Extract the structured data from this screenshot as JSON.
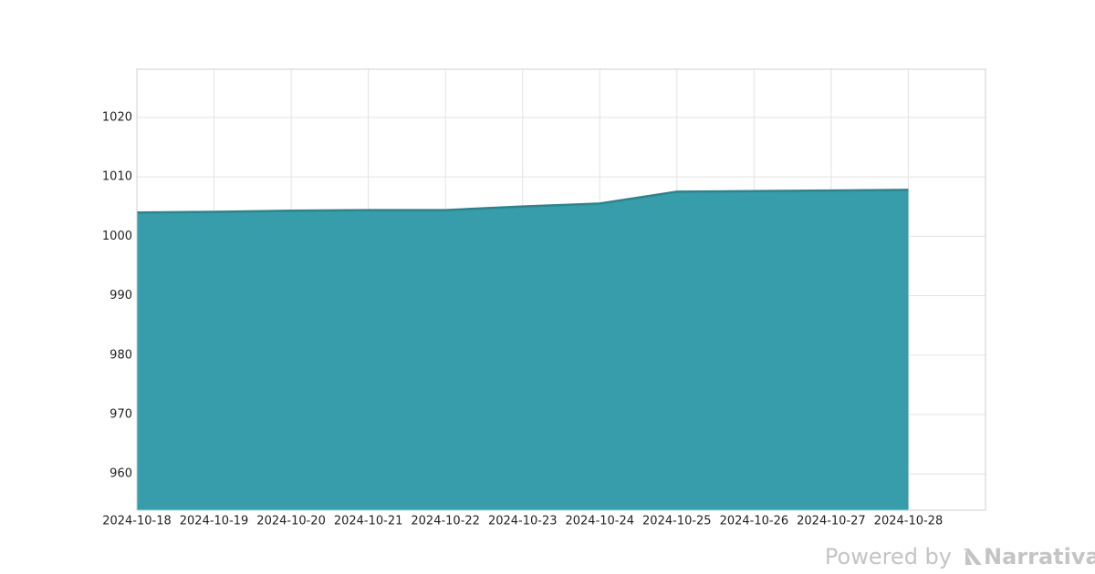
{
  "chart_data": {
    "type": "area",
    "x": [
      "2024-10-18",
      "2024-10-19",
      "2024-10-20",
      "2024-10-21",
      "2024-10-22",
      "2024-10-23",
      "2024-10-24",
      "2024-10-25",
      "2024-10-26",
      "2024-10-27",
      "2024-10-28"
    ],
    "values": [
      1004.0,
      1004.1,
      1004.3,
      1004.4,
      1004.4,
      1005.0,
      1005.5,
      1007.5,
      1007.6,
      1007.7,
      1007.8
    ],
    "color": "#339ba8",
    "line_color": "#1f8a94",
    "xlim": [
      "2024-10-18",
      "2024-10-29"
    ],
    "xticks": [
      "2024-10-18",
      "2024-10-19",
      "2024-10-20",
      "2024-10-21",
      "2024-10-22",
      "2024-10-23",
      "2024-10-24",
      "2024-10-25",
      "2024-10-26",
      "2024-10-27",
      "2024-10-28"
    ],
    "ylim": [
      953.9,
      1028.1
    ],
    "yticks": [
      960,
      970,
      980,
      990,
      1000,
      1010,
      1020
    ],
    "grid": true
  },
  "footer": {
    "powered": "Powered by",
    "brand": "Narrativa"
  }
}
